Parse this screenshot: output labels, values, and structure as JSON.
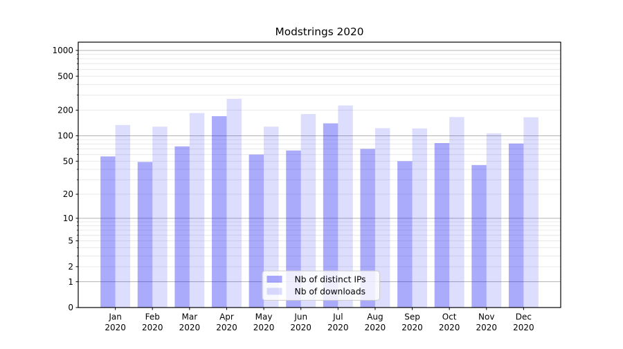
{
  "chart_data": {
    "type": "bar",
    "title": "Modstrings 2020",
    "categories": [
      "Jan 2020",
      "Feb 2020",
      "Mar 2020",
      "Apr 2020",
      "May 2020",
      "Jun 2020",
      "Jul 2020",
      "Aug 2020",
      "Sep 2020",
      "Oct 2020",
      "Nov 2020",
      "Dec 2020"
    ],
    "series": [
      {
        "name": "Nb of distinct IPs",
        "color": "rgba(15,15,245,0.35)",
        "values": [
          57,
          49,
          75,
          170,
          60,
          67,
          140,
          70,
          50,
          82,
          45,
          81
        ]
      },
      {
        "name": "Nb of downloads",
        "color": "rgba(15,15,245,0.14)",
        "values": [
          134,
          128,
          185,
          272,
          128,
          180,
          227,
          123,
          122,
          166,
          107,
          165
        ]
      }
    ],
    "y_axis": {
      "scale": "log1p",
      "range": [
        0,
        1258
      ],
      "ticks": [
        0,
        1,
        2,
        5,
        10,
        20,
        50,
        100,
        200,
        500,
        1000
      ],
      "major_gridlines": [
        1,
        10,
        100,
        1000
      ],
      "minor_gridlines": [
        2,
        3,
        4,
        5,
        6,
        7,
        8,
        9,
        20,
        30,
        40,
        50,
        60,
        70,
        80,
        90,
        200,
        300,
        400,
        500,
        600,
        700,
        800,
        900
      ]
    },
    "xlabel": "",
    "ylabel": "",
    "grid": true,
    "legend_position": "lower center",
    "colors": {
      "background": "#ffffff",
      "grid_major": "#b3b3b3",
      "grid_minor": "#e9e9e9",
      "spine": "#000000",
      "text": "#000000",
      "legend_bg": "rgba(255,255,255,0.8)",
      "legend_border": "#cccccc"
    }
  }
}
